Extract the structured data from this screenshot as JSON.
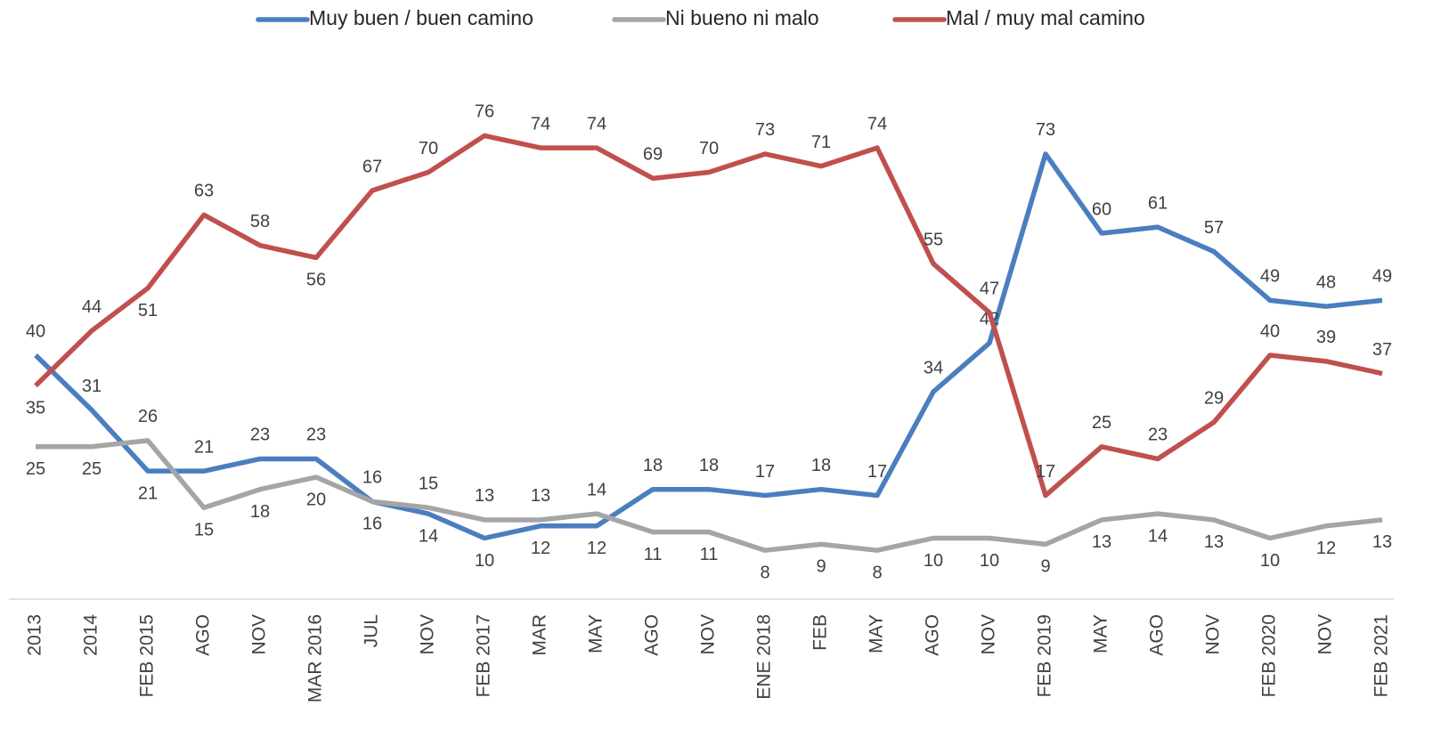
{
  "chart_data": {
    "type": "line",
    "categories": [
      "2013",
      "2014",
      "FEB 2015",
      "AGO",
      "NOV",
      "MAR 2016",
      "JUL",
      "NOV",
      "FEB 2017",
      "MAR",
      "MAY",
      "AGO",
      "NOV",
      "ENE 2018",
      "FEB",
      "MAY",
      "AGO",
      "NOV",
      "FEB 2019",
      "MAY",
      "AGO",
      "NOV",
      "FEB 2020",
      "NOV",
      "FEB 2021"
    ],
    "series": [
      {
        "name": "Muy buen / buen camino",
        "color": "#4a7ebf",
        "values": [
          40,
          31,
          21,
          21,
          23,
          23,
          16,
          14,
          10,
          12,
          12,
          18,
          18,
          17,
          18,
          17,
          34,
          42,
          73,
          60,
          61,
          57,
          49,
          48,
          49
        ]
      },
      {
        "name": "Ni bueno ni malo",
        "color": "#a5a5a5",
        "values": [
          25,
          25,
          26,
          15,
          18,
          20,
          16,
          15,
          13,
          13,
          14,
          11,
          11,
          8,
          9,
          8,
          10,
          10,
          9,
          13,
          14,
          13,
          10,
          12,
          13
        ]
      },
      {
        "name": "Mal / muy mal camino",
        "color": "#c0504d",
        "values": [
          35,
          44,
          51,
          63,
          58,
          56,
          67,
          70,
          76,
          74,
          74,
          69,
          70,
          73,
          71,
          74,
          55,
          47,
          17,
          25,
          23,
          29,
          40,
          39,
          37
        ]
      }
    ],
    "ylim": [
      0,
      80
    ],
    "legend": "top"
  }
}
